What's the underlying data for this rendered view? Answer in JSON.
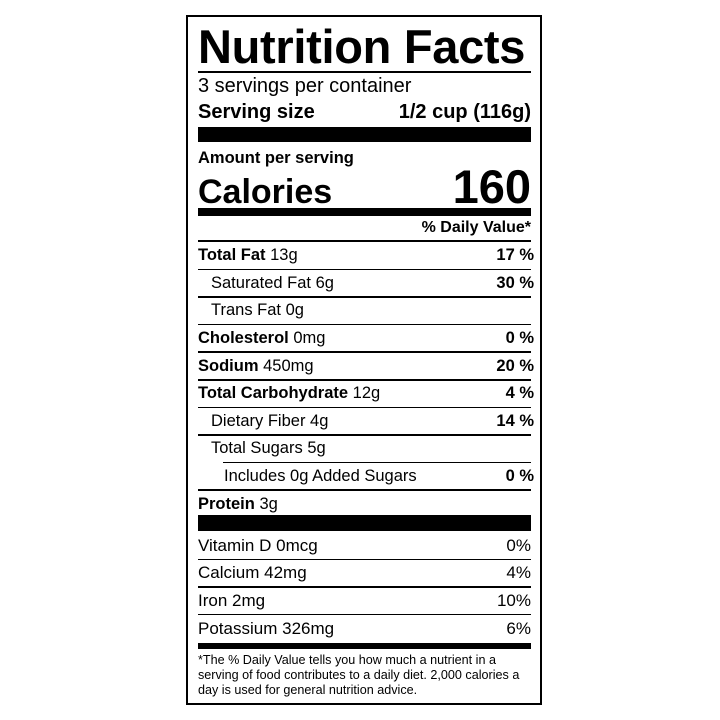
{
  "title": "Nutrition Facts",
  "servings_per_container": "3 servings per container",
  "serving_size": {
    "label": "Serving size",
    "value": "1/2 cup (116g)"
  },
  "amount_per_serving": "Amount per serving",
  "calories": {
    "label": "Calories",
    "value": "160"
  },
  "daily_value_header": "% Daily Value*",
  "nutrients": [
    {
      "name": "Total Fat",
      "amount": "13g",
      "dv": "17 %"
    },
    {
      "name": "Saturated Fat",
      "amount": "6g",
      "dv": "30 %"
    },
    {
      "name": "Trans Fat",
      "amount": "0g",
      "dv": ""
    },
    {
      "name": "Cholesterol",
      "amount": "0mg",
      "dv": "0 %"
    },
    {
      "name": "Sodium",
      "amount": "450mg",
      "dv": "20 %"
    },
    {
      "name": "Total Carbohydrate",
      "amount": "12g",
      "dv": "4 %"
    },
    {
      "name": "Dietary Fiber",
      "amount": "4g",
      "dv": "14 %"
    },
    {
      "name": "Total Sugars",
      "amount": "5g",
      "dv": ""
    },
    {
      "name": "Includes 0g Added Sugars",
      "amount": "",
      "dv": "0 %"
    },
    {
      "name": "Protein",
      "amount": "3g",
      "dv": ""
    }
  ],
  "vitamins": [
    {
      "name": "Vitamin D",
      "amount": "0mcg",
      "dv": "0%"
    },
    {
      "name": "Calcium",
      "amount": "42mg",
      "dv": "4%"
    },
    {
      "name": "Iron",
      "amount": "2mg",
      "dv": "10%"
    },
    {
      "name": "Potassium",
      "amount": "326mg",
      "dv": "6%"
    }
  ],
  "footnote": "*The % Daily Value tells you how much a nutrient in a serving of food contributes to a daily diet. 2,000 calories a day is used for general nutrition advice."
}
